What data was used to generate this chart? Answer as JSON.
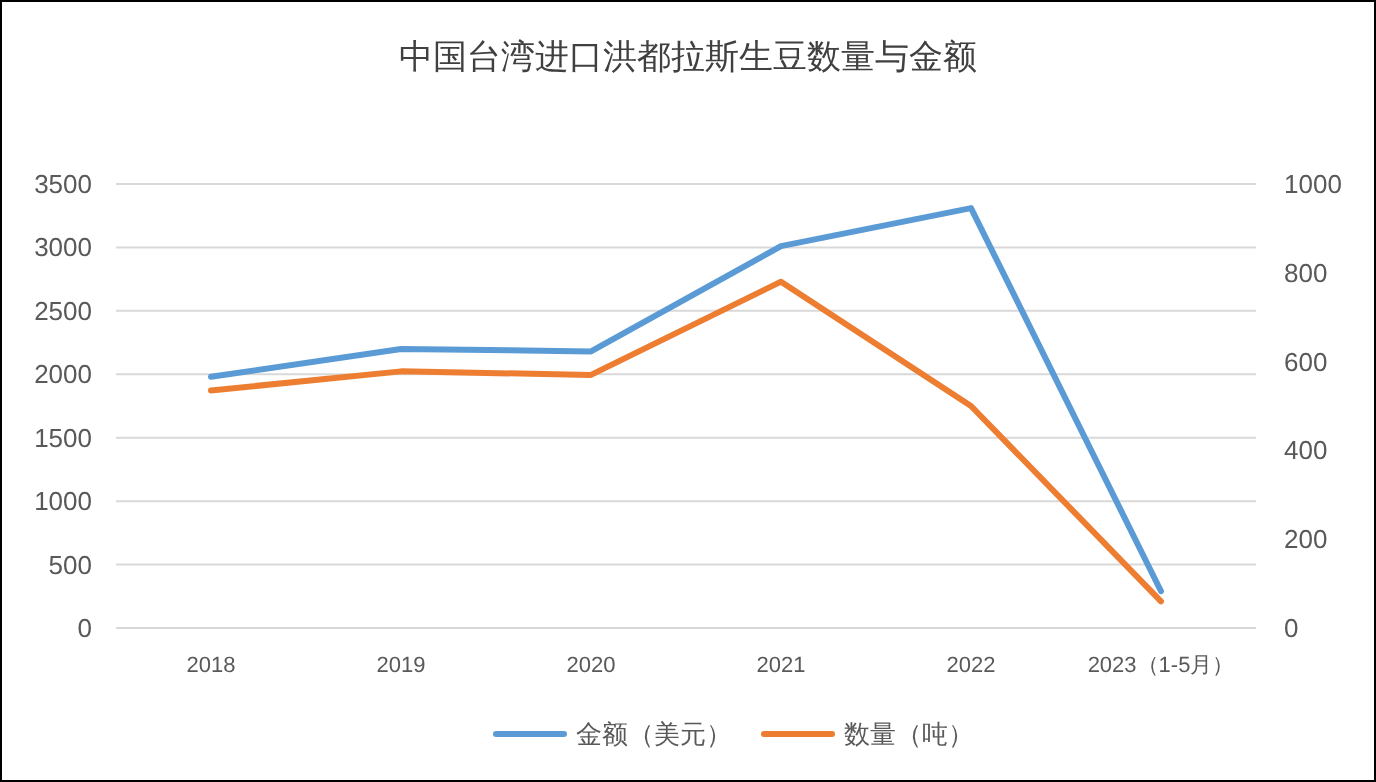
{
  "chart_data": {
    "type": "line",
    "title": "中国台湾进口洪都拉斯生豆数量与金额",
    "categories": [
      "2018",
      "2019",
      "2020",
      "2021",
      "2022",
      "2023（1-5月）"
    ],
    "series": [
      {
        "name": "金额（美元）",
        "color": "#5b9bd5",
        "values": [
          1980,
          2200,
          2180,
          3010,
          3310,
          290
        ]
      },
      {
        "name": "数量（吨）",
        "color": "#ed7d31",
        "axis": "y2",
        "values": [
          535,
          578,
          570,
          780,
          500,
          60
        ]
      }
    ],
    "ylim": [
      0,
      3500
    ],
    "yticks": [
      0,
      500,
      1000,
      1500,
      2000,
      2500,
      3000,
      3500
    ],
    "y2lim": [
      0,
      1000
    ],
    "y2ticks": [
      0,
      200,
      400,
      600,
      800,
      1000
    ],
    "grid": "y",
    "legend": "bottom",
    "marker": "none",
    "line_style": "solid"
  }
}
